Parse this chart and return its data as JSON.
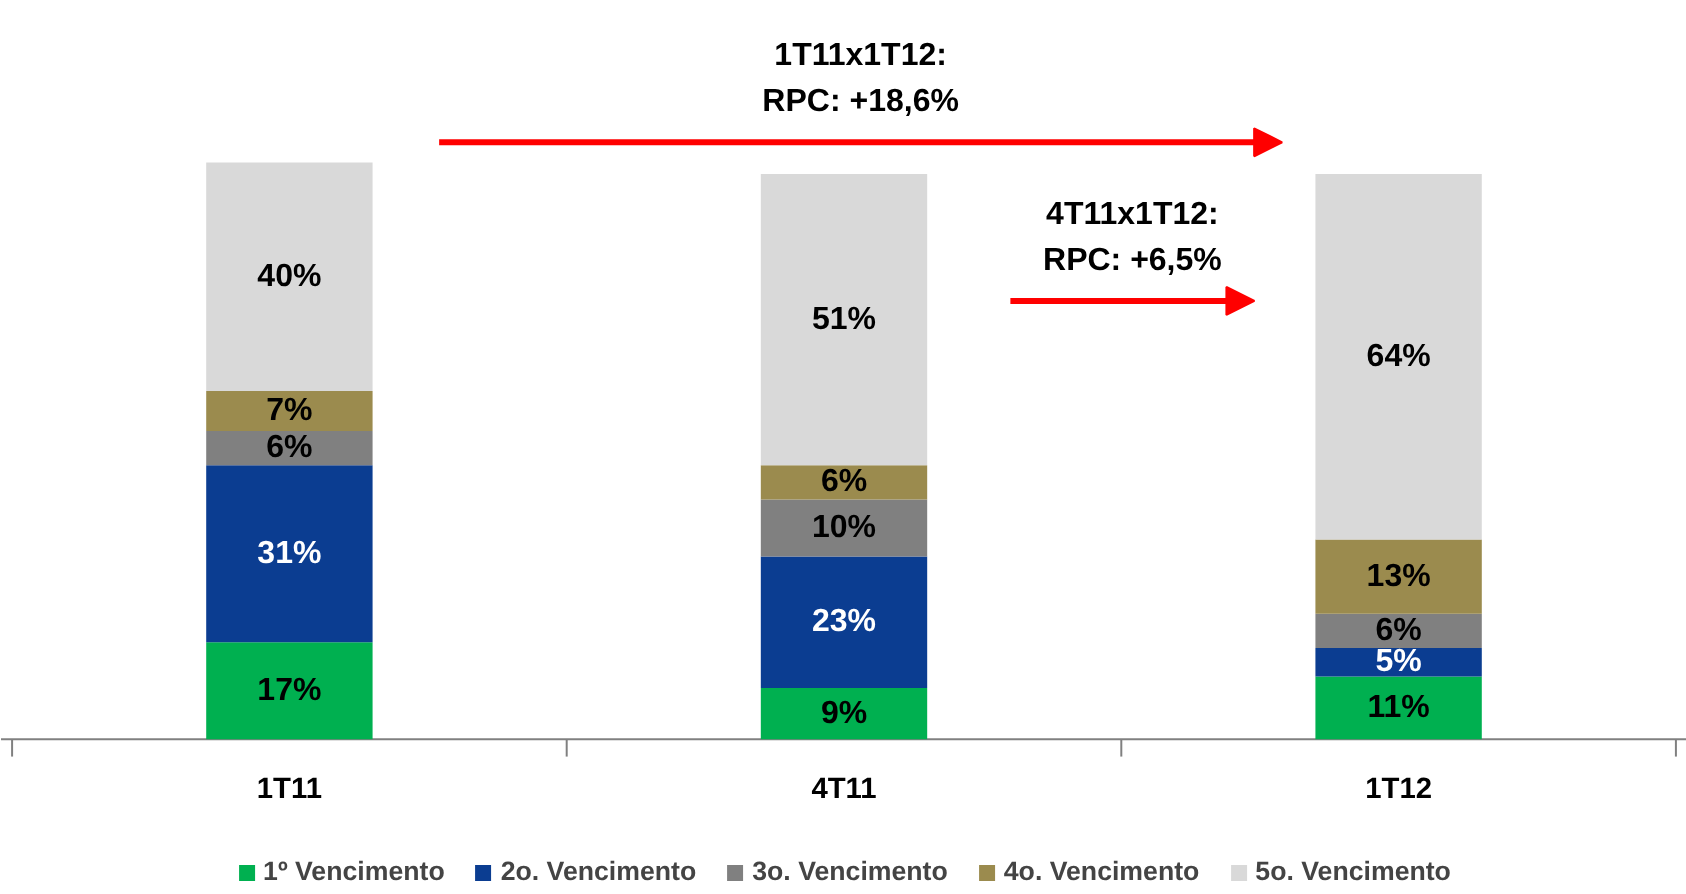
{
  "chart_data": {
    "type": "bar",
    "stacked": true,
    "categories": [
      "1T11",
      "4T11",
      "1T12"
    ],
    "series": [
      {
        "name": "1º Vencimento",
        "color": "#00b050",
        "values": [
          17,
          9,
          11
        ],
        "value_labels": [
          "17%",
          "9%",
          "11%"
        ]
      },
      {
        "name": "2o. Vencimento",
        "color": "#0b3d91",
        "values": [
          31,
          23,
          5
        ],
        "value_labels": [
          "31%",
          "23%",
          "5%"
        ]
      },
      {
        "name": "3o. Vencimento",
        "color": "#808080",
        "values": [
          6,
          10,
          6
        ],
        "value_labels": [
          "6%",
          "10%",
          "6%"
        ]
      },
      {
        "name": "4o. Vencimento",
        "color": "#9b8b4e",
        "values": [
          7,
          6,
          13
        ],
        "value_labels": [
          "7%",
          "6%",
          "13%"
        ]
      },
      {
        "name": "5o. Vencimento",
        "color": "#d9d9d9",
        "values": [
          40,
          51,
          64
        ],
        "value_labels": [
          "40%",
          "51%",
          "64%"
        ]
      }
    ],
    "annotations": [
      "1T11x1T12:\nRPC: +18,6%",
      "4T11x1T12:\nRPC: +6,5%"
    ],
    "legend": "bottom",
    "grid": false
  }
}
